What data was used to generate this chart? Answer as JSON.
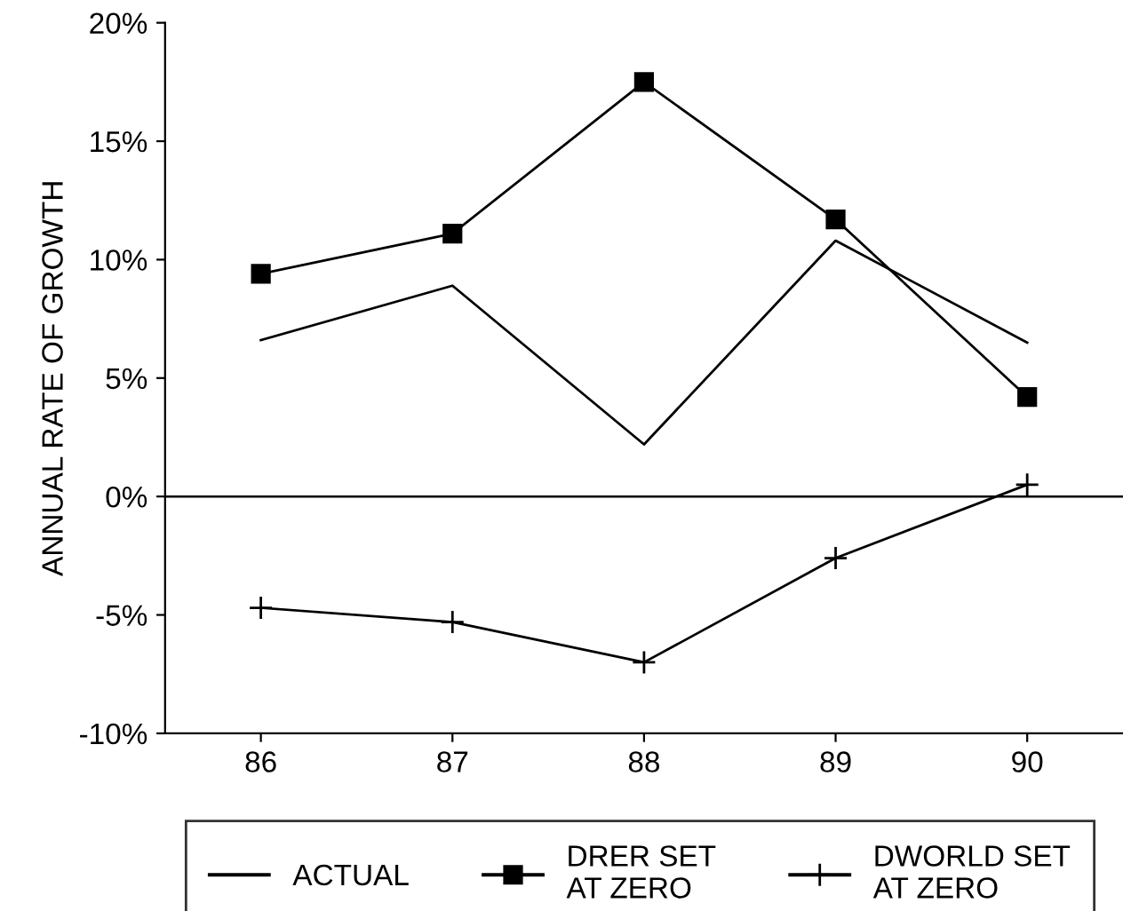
{
  "chart_data": {
    "type": "line",
    "ylabel": "ANNUAL RATE OF GROWTH",
    "categories": [
      "86",
      "87",
      "88",
      "89",
      "90"
    ],
    "series": [
      {
        "name": "ACTUAL",
        "color": "#000000",
        "marker": "none",
        "values": [
          6.6,
          8.9,
          2.2,
          10.8,
          6.5
        ]
      },
      {
        "name": "DRER SET\nAT ZERO",
        "color": "#000000",
        "marker": "square",
        "values": [
          9.4,
          11.1,
          17.5,
          11.7,
          4.2
        ]
      },
      {
        "name": "DWORLD SET\nAT ZERO",
        "color": "#000000",
        "marker": "cross",
        "values": [
          -4.7,
          -5.3,
          -7.0,
          -2.6,
          0.5
        ]
      }
    ],
    "ylim": [
      -10,
      20
    ],
    "yticks": [
      {
        "value": -10,
        "label": "-10%"
      },
      {
        "value": -5,
        "label": "-5%"
      },
      {
        "value": 0,
        "label": "0%"
      },
      {
        "value": 5,
        "label": "5%"
      },
      {
        "value": 10,
        "label": "10%"
      },
      {
        "value": 15,
        "label": "15%"
      },
      {
        "value": 20,
        "label": "20%"
      }
    ],
    "ref_lines": [
      {
        "axis": "y",
        "value": 0,
        "color": "#000000"
      }
    ],
    "grid": false,
    "legend": "bottom",
    "line_style": "solid"
  }
}
